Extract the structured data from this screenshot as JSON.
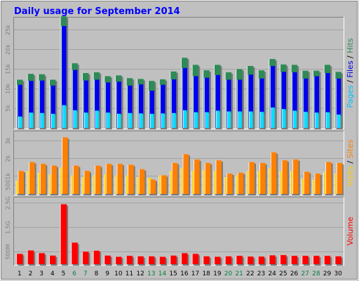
{
  "chart_data": {
    "title": "Daily usage for September 2014",
    "type": "bar",
    "days": [
      "1",
      "2",
      "3",
      "4",
      "5",
      "6",
      "7",
      "8",
      "9",
      "10",
      "11",
      "12",
      "13",
      "14",
      "15",
      "16",
      "17",
      "18",
      "19",
      "20",
      "21",
      "22",
      "23",
      "24",
      "25",
      "26",
      "27",
      "28",
      "29",
      "30"
    ],
    "weekend_days": [
      "6",
      "7",
      "13",
      "14",
      "20",
      "21",
      "27",
      "28"
    ],
    "colors": {
      "background": "#c0c0c0",
      "title": "#0000ff",
      "weekday_label": "#000000",
      "weekend_label": "#008040",
      "hits": "#2e8b57",
      "files": "#0000ee",
      "pages": "#00e0ff",
      "sites": "#ff8000",
      "visits": "#ffcc00",
      "volume": "#ff0000"
    },
    "panels": [
      {
        "id": "hits",
        "side_labels": [
          {
            "text": "Pages",
            "color": "#00c0ff"
          },
          {
            "text": " / ",
            "color": "#000000"
          },
          {
            "text": "Files",
            "color": "#0000ee"
          },
          {
            "text": " / ",
            "color": "#000000"
          },
          {
            "text": "Hits",
            "color": "#2e8b57"
          }
        ],
        "ylim": [
          0,
          28000
        ],
        "ticks": [
          {
            "label": "5k",
            "value": 5000
          },
          {
            "label": "10k",
            "value": 10000
          },
          {
            "label": "15k",
            "value": 15000
          },
          {
            "label": "20k",
            "value": 20000
          },
          {
            "label": "25k",
            "value": 25000
          }
        ],
        "series": [
          {
            "name": "Hits",
            "color": "#2e8b57",
            "values": [
              12300,
              13800,
              13700,
              12300,
              28500,
              16500,
              14000,
              14200,
              13200,
              13400,
              12700,
              12500,
              12000,
              12400,
              14400,
              17900,
              16100,
              14700,
              16100,
              14200,
              15000,
              15800,
              14700,
              17600,
              16200,
              16100,
              14600,
              14600,
              16100,
              14300
            ]
          },
          {
            "name": "Files",
            "color": "#0000ee",
            "values": [
              11000,
              12000,
              12100,
              10800,
              26000,
              14800,
              12100,
              12300,
              11600,
              11800,
              10800,
              11100,
              9500,
              11000,
              12400,
              15300,
              13200,
              12800,
              13500,
              12300,
              12300,
              13600,
              12600,
              15800,
              14300,
              14200,
              12600,
              13200,
              14000,
              12600
            ]
          },
          {
            "name": "Pages",
            "color": "#00e0ff",
            "values": [
              2900,
              3900,
              3800,
              3600,
              5800,
              4500,
              3900,
              4400,
              3900,
              3600,
              3800,
              3700,
              3600,
              3700,
              3800,
              4500,
              4000,
              4000,
              4400,
              4200,
              4200,
              4200,
              4100,
              5200,
              4800,
              4400,
              4100,
              3900,
              4000,
              3400
            ]
          }
        ]
      },
      {
        "id": "visits",
        "side_labels": [
          {
            "text": "Visits",
            "color": "#ffcc00"
          },
          {
            "text": " / ",
            "color": "#000000"
          },
          {
            "text": "Sites",
            "color": "#ff8000"
          }
        ],
        "ylim": [
          0,
          3500
        ],
        "ticks": [
          {
            "label": "500",
            "value": 500
          },
          {
            "label": "1k",
            "value": 1000
          },
          {
            "label": "2k",
            "value": 2000
          },
          {
            "label": "3k",
            "value": 3000
          }
        ],
        "series": [
          {
            "name": "Visits",
            "color": "#ffcc00",
            "values": [
              750,
              1300,
              1200,
              1100,
              1500,
              1050,
              950,
              1050,
              1100,
              1050,
              1050,
              950,
              900,
              1050,
              1300,
              1450,
              1300,
              1350,
              1300,
              950,
              1050,
              1300,
              1300,
              1450,
              1300,
              1300,
              850,
              800,
              1250,
              1150
            ]
          },
          {
            "name": "Sites",
            "color": "#ff8000",
            "values": [
              1300,
              1800,
              1700,
              1600,
              3200,
              1600,
              1300,
              1600,
              1700,
              1700,
              1650,
              1400,
              800,
              1050,
              1750,
              2250,
              1950,
              1750,
              1900,
              1150,
              1200,
              1800,
              1750,
              2350,
              1900,
              1950,
              1250,
              1150,
              1800,
              1750
            ]
          }
        ]
      },
      {
        "id": "volume",
        "side_labels": [
          {
            "text": "Volume",
            "color": "#ff0000"
          }
        ],
        "ylim": [
          0,
          2700
        ],
        "ticks": [
          {
            "label": "500M",
            "value": 500
          },
          {
            "label": "1.5G",
            "value": 1500
          },
          {
            "label": "2.5G",
            "value": 2500
          }
        ],
        "series": [
          {
            "name": "Volume",
            "color": "#ff0000",
            "values": [
              420,
              560,
              450,
              350,
              2450,
              880,
              510,
              550,
              350,
              300,
              340,
              320,
              320,
              300,
              350,
              450,
              420,
              320,
              300,
              320,
              340,
              310,
              310,
              360,
              370,
              340,
              340,
              340,
              340,
              320
            ]
          }
        ]
      }
    ]
  }
}
